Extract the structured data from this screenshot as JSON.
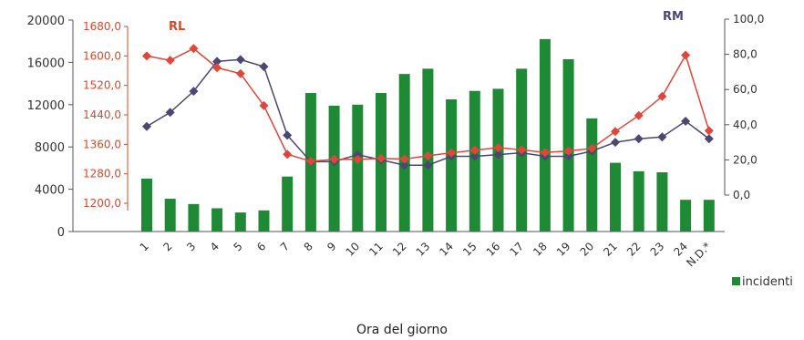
{
  "chart_data": {
    "type": "bar",
    "xlabel": "Ora del giorno",
    "categories": [
      "1",
      "2",
      "3",
      "4",
      "5",
      "6",
      "7",
      "8",
      "9",
      "10",
      "11",
      "12",
      "13",
      "14",
      "15",
      "16",
      "17",
      "18",
      "19",
      "20",
      "21",
      "22",
      "23",
      "24",
      "N.D.*"
    ],
    "series": [
      {
        "name": "incidenti",
        "type": "bar",
        "axis": "left",
        "color": "#1e8a35",
        "values": [
          5000,
          3100,
          2600,
          2200,
          1800,
          2000,
          5200,
          13100,
          11900,
          12000,
          13100,
          14900,
          15400,
          12500,
          13300,
          13500,
          15400,
          18200,
          16300,
          10700,
          6500,
          5700,
          5600,
          3000,
          3000
        ]
      },
      {
        "name": "RL",
        "type": "line",
        "axis": "red",
        "color": "#e0463a",
        "values": [
          1600,
          1588,
          1620,
          1568,
          1552,
          1465,
          1333,
          1314,
          1319,
          1319,
          1322,
          1320,
          1329,
          1337,
          1344,
          1351,
          1345,
          1338,
          1342,
          1349,
          1395,
          1438,
          1490,
          1602,
          1397
        ]
      },
      {
        "name": "RM",
        "type": "line",
        "axis": "right",
        "color": "#4a4870",
        "values": [
          39,
          47,
          59,
          76,
          77,
          73,
          34,
          19,
          19,
          23,
          20,
          17,
          17,
          22,
          22,
          23,
          24,
          22,
          22,
          25,
          30,
          32,
          33,
          42,
          32
        ]
      }
    ],
    "y_left": {
      "ticks": [
        "0",
        "4000",
        "8000",
        "12000",
        "16000",
        "20000"
      ],
      "ylim": [
        0,
        20000
      ]
    },
    "y_red": {
      "ticks": [
        "1200,0",
        "1280,0",
        "1360,0",
        "1440,0",
        "1520,0",
        "1600,0",
        "1680,0"
      ],
      "ylim": [
        1200,
        1680
      ]
    },
    "y_right": {
      "ticks": [
        "0,0",
        "20,0",
        "40,0",
        "60,0",
        "80,0",
        "100,0"
      ],
      "ylim": [
        0,
        100
      ]
    },
    "series_labels": {
      "rl": "RL",
      "rm": "RM"
    },
    "legend": {
      "label": "incidenti",
      "color": "#1e8a35",
      "placement": "bottom-right"
    },
    "grid": false
  }
}
